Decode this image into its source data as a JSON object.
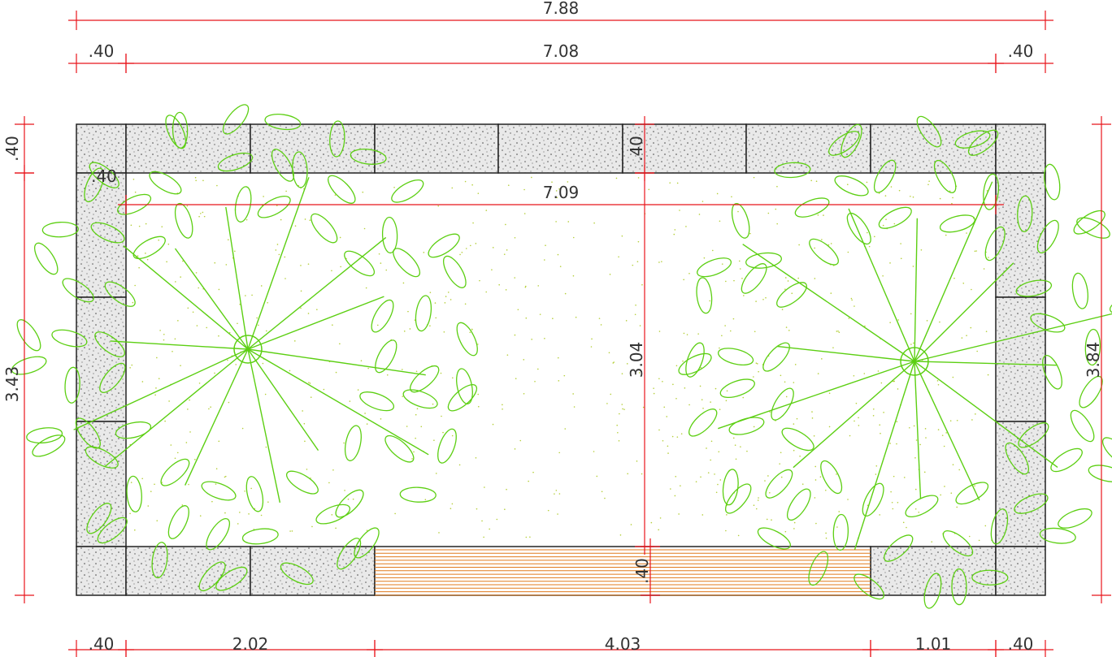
{
  "dimensions": [
    {
      "label": "7.88"
    },
    {
      "label": ".40"
    },
    {
      "label": "7.08"
    },
    {
      "label": ".40"
    },
    {
      "label": ".40"
    },
    {
      "label": "3.43"
    },
    {
      "label": ".40"
    },
    {
      "label": "7.09"
    },
    {
      "label": ".40"
    },
    {
      "label": "3.04"
    },
    {
      "label": "3.84"
    },
    {
      "label": ".40"
    },
    {
      "label": ".40"
    },
    {
      "label": "2.02"
    },
    {
      "label": "4.03"
    },
    {
      "label": "1.01"
    },
    {
      "label": ".40"
    }
  ]
}
